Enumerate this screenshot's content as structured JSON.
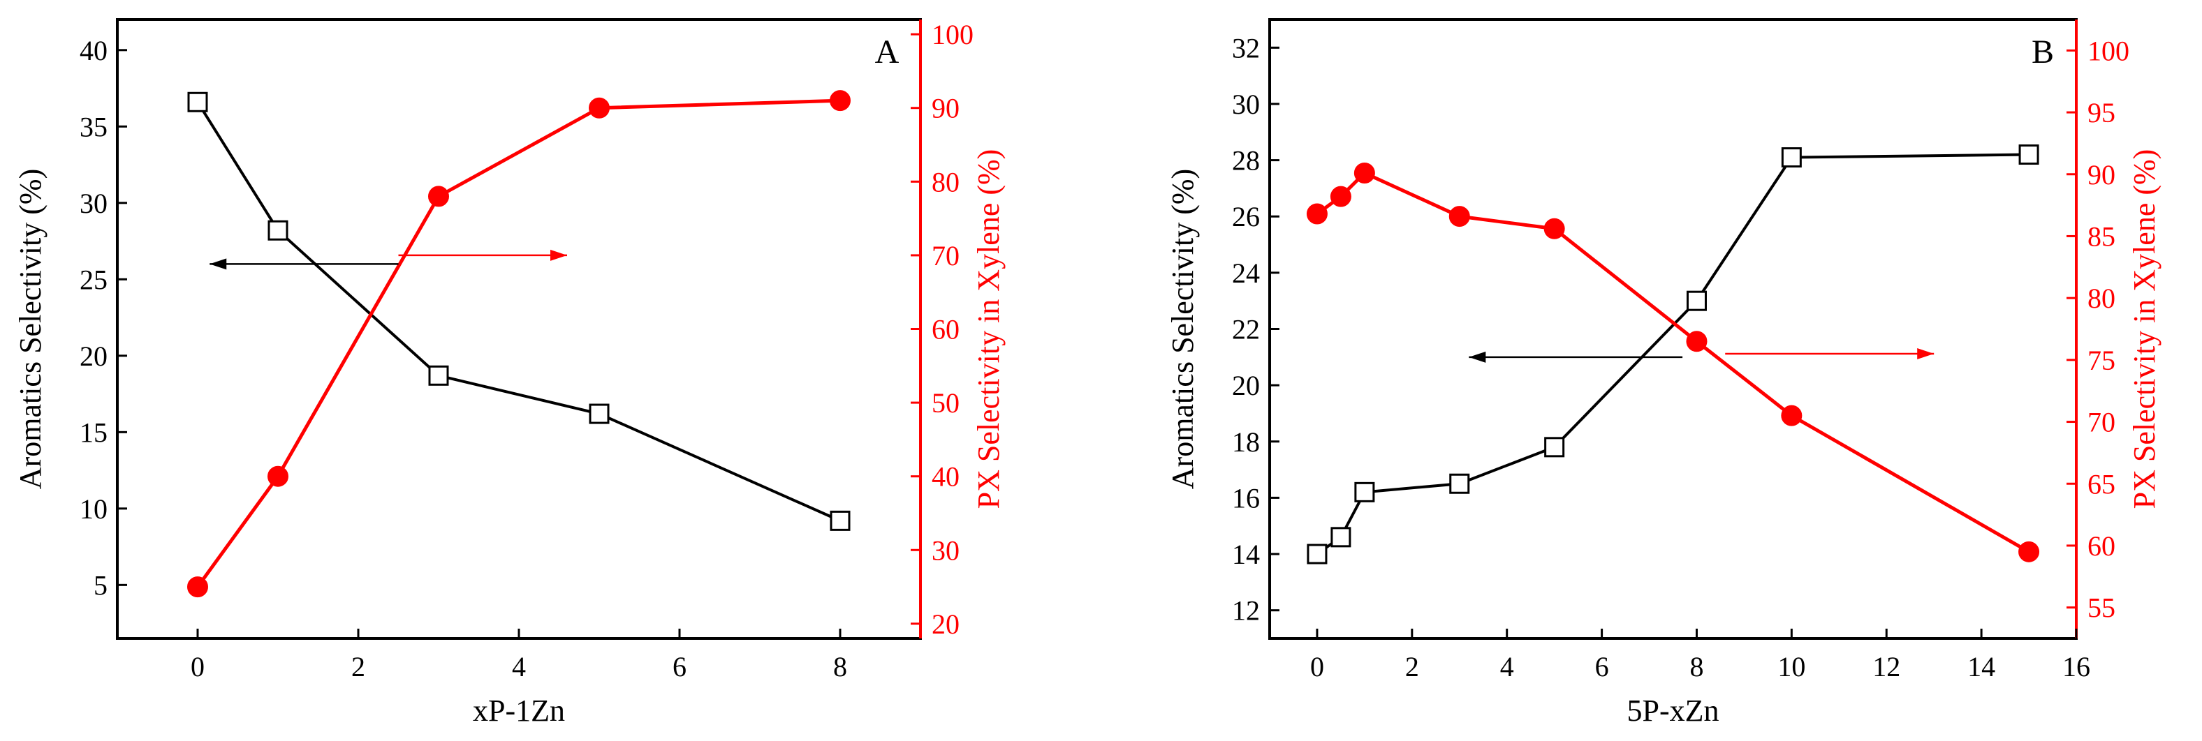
{
  "colors": {
    "left": "#000000",
    "right": "#ff0000"
  },
  "chart_data": [
    {
      "type": "line",
      "panel": "A",
      "xlabel": "xP-1Zn",
      "ylabel_left": "Aromatics Selectivity (%)",
      "ylabel_right": "PX Selectivity in Xylene (%)",
      "xlim": [
        -1,
        9
      ],
      "ylim_left": [
        1.5,
        42
      ],
      "ylim_right": [
        18,
        102
      ],
      "xticks": [
        0,
        2,
        4,
        6,
        8
      ],
      "yticks_left": [
        5,
        10,
        15,
        20,
        25,
        30,
        35,
        40
      ],
      "yticks_right": [
        20,
        30,
        40,
        50,
        60,
        70,
        80,
        90,
        100
      ],
      "series": [
        {
          "name": "Aromatics Selectivity",
          "axis": "left",
          "marker": "open-square",
          "x": [
            0,
            1,
            3,
            5,
            8
          ],
          "values": [
            36.6,
            28.2,
            18.7,
            16.2,
            9.2
          ]
        },
        {
          "name": "PX Selectivity",
          "axis": "right",
          "marker": "filled-circle",
          "x": [
            0,
            1,
            3,
            5,
            8
          ],
          "values": [
            25,
            40,
            78,
            90,
            91
          ]
        }
      ],
      "arrows": [
        {
          "axis": "left",
          "direction": "left",
          "x_from": 2.5,
          "x_to": 0.15,
          "y": 26
        },
        {
          "axis": "right",
          "direction": "right",
          "x_from": 2.5,
          "x_to": 4.6,
          "y": 70
        }
      ]
    },
    {
      "type": "line",
      "panel": "B",
      "xlabel": "5P-xZn",
      "ylabel_left": "Aromatics Selectivity (%)",
      "ylabel_right": "PX Selectivity in Xylene (%)",
      "xlim": [
        -1,
        16
      ],
      "ylim_left": [
        11,
        33
      ],
      "ylim_right": [
        52.5,
        102.5
      ],
      "xticks": [
        0,
        2,
        4,
        6,
        8,
        10,
        12,
        14,
        16
      ],
      "yticks_left": [
        12,
        14,
        16,
        18,
        20,
        22,
        24,
        26,
        28,
        30,
        32
      ],
      "yticks_right": [
        55,
        60,
        65,
        70,
        75,
        80,
        85,
        90,
        95,
        100
      ],
      "series": [
        {
          "name": "Aromatics Selectivity",
          "axis": "left",
          "marker": "open-square",
          "x": [
            0,
            0.5,
            1,
            3,
            5,
            8,
            10,
            15
          ],
          "values": [
            14.0,
            14.6,
            16.2,
            16.5,
            17.8,
            23.0,
            28.1,
            28.2
          ]
        },
        {
          "name": "PX Selectivity",
          "axis": "right",
          "marker": "filled-circle",
          "x": [
            0,
            0.5,
            1,
            3,
            5,
            8,
            10,
            15
          ],
          "values": [
            86.8,
            88.2,
            90.1,
            86.6,
            85.6,
            76.5,
            70.5,
            59.5
          ]
        }
      ],
      "arrows": [
        {
          "axis": "left",
          "direction": "left",
          "x_from": 7.7,
          "x_to": 3.2,
          "y": 21
        },
        {
          "axis": "right",
          "direction": "right",
          "x_from": 8.6,
          "x_to": 13,
          "y": 75.5
        }
      ]
    }
  ]
}
